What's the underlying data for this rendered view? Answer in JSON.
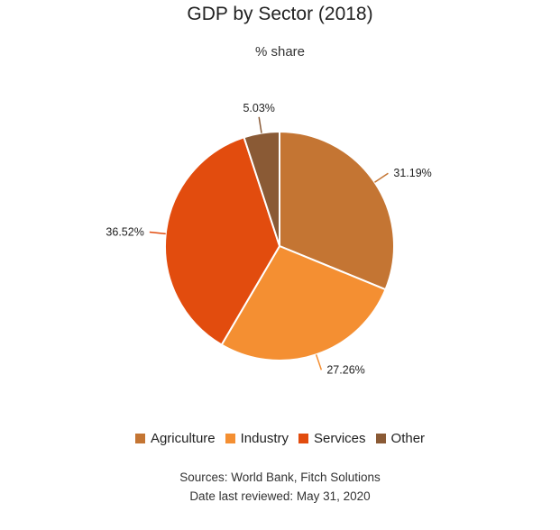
{
  "chart_data": {
    "type": "pie",
    "title": "GDP by Sector (2018)",
    "subtitle": "% share",
    "categories": [
      "Agriculture",
      "Industry",
      "Services",
      "Other"
    ],
    "values": [
      31.19,
      27.26,
      36.52,
      5.03
    ],
    "labels": [
      "31.19%",
      "27.26%",
      "36.52%",
      "5.03%"
    ],
    "colors": [
      "#c47533",
      "#f48f32",
      "#e24c0e",
      "#8a5a35"
    ],
    "legend_position": "bottom"
  },
  "footer": {
    "sources": "Sources: World Bank, Fitch Solutions",
    "reviewed": "Date last reviewed: May 31, 2020"
  }
}
